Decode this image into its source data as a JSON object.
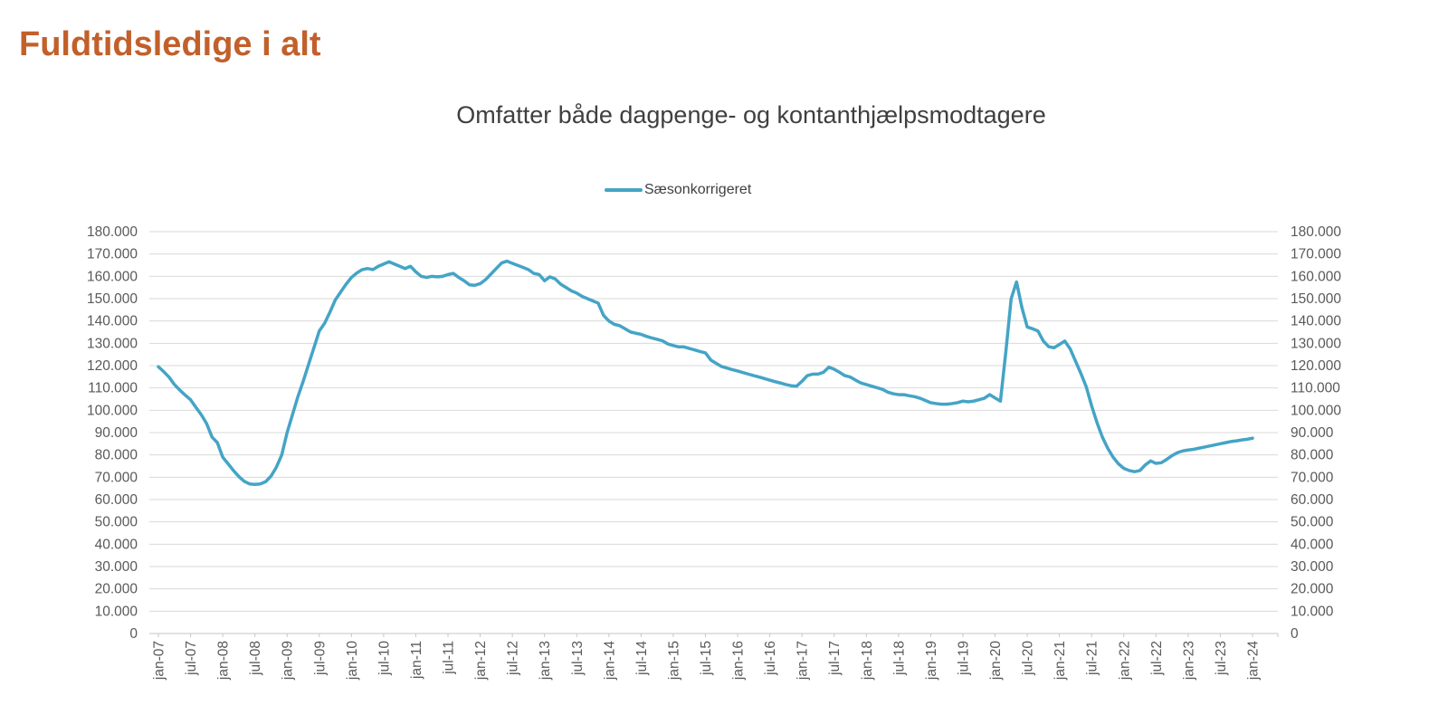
{
  "page": {
    "title": "Fuldtidsledige i alt"
  },
  "style": {
    "title_color": "#C2602B",
    "subtitle_color": "#3F3F3F",
    "axis_text_color": "#595959",
    "gridline_color": "#D9D9D9",
    "axis_line_color": "#C6C6C6",
    "line_color": "#44A4C6",
    "background": "#FFFFFF"
  },
  "chart_data": {
    "type": "line",
    "title": "Omfatter både dagpenge- og kontanthjælpsmodtagere",
    "legend": {
      "position": "top",
      "entries": [
        {
          "label": "Sæsonkorrigeret",
          "color": "#44A4C6"
        }
      ]
    },
    "grid": true,
    "x_axis": {
      "interval": "monthly",
      "start": "jan-07",
      "end": "jan-24",
      "tick_labels": [
        "jan-07",
        "jul-07",
        "jan-08",
        "jul-08",
        "jan-09",
        "jul-09",
        "jan-10",
        "jul-10",
        "jan-11",
        "jul-11",
        "jan-12",
        "jul-12",
        "jan-13",
        "jul-13",
        "jan-14",
        "jul-14",
        "jan-15",
        "jul-15",
        "jan-16",
        "jul-16",
        "jan-17",
        "jul-17",
        "jan-18",
        "jul-18",
        "jan-19",
        "jul-19",
        "jan-20",
        "jul-20",
        "jan-21",
        "jul-21",
        "jan-22",
        "jul-22",
        "jan-23",
        "jul-23",
        "jan-24"
      ]
    },
    "y_axis": {
      "min": 0,
      "max": 180000,
      "step": 10000,
      "sides": "both",
      "tick_labels": [
        "180.000",
        "170.000",
        "160.000",
        "150.000",
        "140.000",
        "130.000",
        "120.000",
        "110.000",
        "100.000",
        "90.000",
        "80.000",
        "70.000",
        "60.000",
        "50.000",
        "40.000",
        "30.000",
        "20.000",
        "10.000",
        "0"
      ]
    },
    "series": [
      {
        "name": "Sæsonkorrigeret",
        "color": "#44A4C6",
        "first_month": "jan-07",
        "last_month": "jan-24",
        "values": [
          119500,
          117300,
          114800,
          111500,
          109000,
          106800,
          104700,
          101300,
          98000,
          94000,
          88000,
          85500,
          79000,
          76000,
          73000,
          70300,
          68200,
          67000,
          66800,
          67000,
          68000,
          70500,
          74500,
          80000,
          90000,
          98000,
          106000,
          113000,
          120500,
          128000,
          135500,
          139000,
          144000,
          149500,
          153000,
          156500,
          159500,
          161500,
          163000,
          163500,
          163000,
          164500,
          165500,
          166500,
          165500,
          164500,
          163500,
          164500,
          162000,
          160000,
          159500,
          160000,
          159800,
          160000,
          160800,
          161300,
          159500,
          158000,
          156200,
          156000,
          156700,
          158500,
          161000,
          163500,
          166000,
          166800,
          165800,
          164900,
          164000,
          163000,
          161300,
          160800,
          158000,
          159800,
          158800,
          156500,
          155000,
          153500,
          152500,
          151000,
          150000,
          149000,
          148000,
          142500,
          140000,
          138500,
          137900,
          136500,
          135100,
          134500,
          134000,
          133100,
          132400,
          131800,
          131100,
          129700,
          129000,
          128400,
          128400,
          127700,
          127000,
          126300,
          125700,
          122500,
          121000,
          119600,
          118900,
          118200,
          117600,
          116900,
          116200,
          115500,
          114900,
          114200,
          113500,
          112800,
          112200,
          111500,
          111000,
          110800,
          113000,
          115500,
          116200,
          116200,
          117000,
          119300,
          118400,
          117000,
          115500,
          114900,
          113500,
          112200,
          111500,
          110800,
          110100,
          109400,
          108100,
          107400,
          107000,
          107000,
          106500,
          106100,
          105400,
          104400,
          103400,
          103000,
          102700,
          102700,
          103000,
          103400,
          104100,
          103800,
          104100,
          104700,
          105400,
          107000,
          105500,
          104100,
          126000,
          150000,
          157500,
          146000,
          137300,
          136500,
          135500,
          131000,
          128500,
          128000,
          129500,
          131000,
          127500,
          122000,
          116500,
          110500,
          102000,
          94500,
          88000,
          83000,
          79000,
          76000,
          74000,
          73000,
          72500,
          73000,
          75500,
          77300,
          76200,
          76500,
          78000,
          79700,
          81000,
          81800,
          82200,
          82500,
          83000,
          83500,
          84000,
          84500,
          85000,
          85500,
          86000,
          86300,
          86700,
          87000,
          87500
        ]
      }
    ]
  }
}
